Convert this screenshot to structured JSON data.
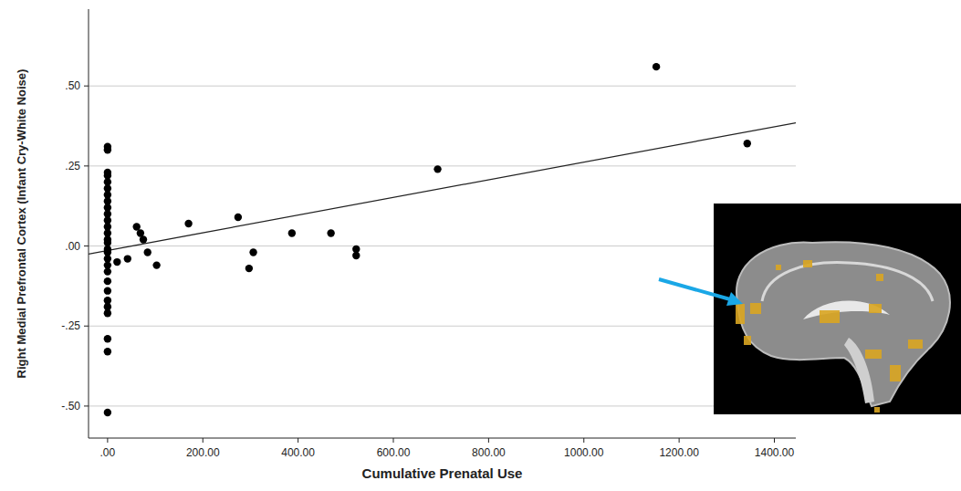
{
  "chart_data": {
    "type": "scatter",
    "x_label": "Cumulative Prenatal Use",
    "y_label": "Right Medial Prefrontal Cortex (Infant Cry-White Noise)",
    "x": [
      0,
      0,
      0,
      0,
      0,
      0,
      0,
      0,
      0,
      0,
      0,
      0,
      0,
      0,
      0,
      0,
      0,
      0,
      0,
      0,
      0,
      0,
      0,
      0,
      0,
      0,
      0,
      0,
      20,
      42,
      61,
      69,
      75,
      84,
      103,
      170,
      274,
      297,
      306,
      387,
      469,
      522,
      522,
      693,
      1152,
      1343
    ],
    "values": [
      0.31,
      0.3,
      0.23,
      0.22,
      0.2,
      0.18,
      0.16,
      0.14,
      0.12,
      0.1,
      0.08,
      0.06,
      0.04,
      0.02,
      0.01,
      -0.01,
      -0.02,
      -0.04,
      -0.06,
      -0.08,
      -0.11,
      -0.14,
      -0.17,
      -0.19,
      -0.21,
      -0.29,
      -0.33,
      -0.52,
      -0.05,
      -0.04,
      0.06,
      0.04,
      0.02,
      -0.02,
      -0.06,
      0.07,
      0.09,
      -0.07,
      -0.02,
      0.04,
      0.04,
      -0.01,
      -0.03,
      0.24,
      0.56,
      0.32
    ],
    "color": "#000000",
    "marker": "circle",
    "trend": {
      "x": [
        -40,
        1445
      ],
      "values": [
        -0.025,
        0.385
      ],
      "color": "#222222",
      "line_style": "solid"
    },
    "xlim": [
      -40,
      1445
    ],
    "xticks": [
      {
        "value": 0,
        "label": ".00"
      },
      {
        "value": 200,
        "label": "200.00"
      },
      {
        "value": 400,
        "label": "400.00"
      },
      {
        "value": 600,
        "label": "600.00"
      },
      {
        "value": 800,
        "label": "800.00"
      },
      {
        "value": 1000,
        "label": "1000.00"
      },
      {
        "value": 1200,
        "label": "1200.00"
      },
      {
        "value": 1400,
        "label": "1400.00"
      }
    ],
    "ylim": [
      -0.6,
      0.74
    ],
    "yticks": [
      {
        "value": 0.5,
        "label": ".50"
      },
      {
        "value": 0.25,
        "label": ".25"
      },
      {
        "value": 0,
        "label": ".00"
      },
      {
        "value": -0.25,
        "label": "-.25"
      },
      {
        "value": -0.5,
        "label": "-.50"
      }
    ],
    "grid": true
  }
}
